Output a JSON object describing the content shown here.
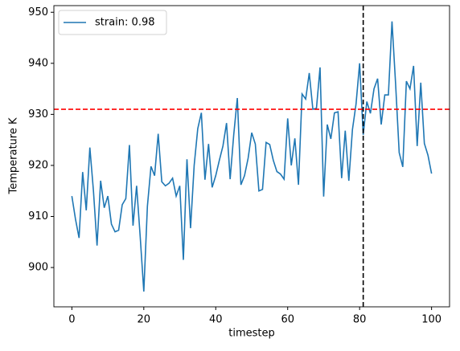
{
  "chart_data": {
    "type": "line",
    "xlabel": "timestep",
    "ylabel": "Temperature K",
    "x": [
      0,
      1,
      2,
      3,
      4,
      5,
      6,
      7,
      8,
      9,
      10,
      11,
      12,
      13,
      14,
      15,
      16,
      17,
      18,
      19,
      20,
      21,
      22,
      23,
      24,
      25,
      26,
      27,
      28,
      29,
      30,
      31,
      32,
      33,
      34,
      35,
      36,
      37,
      38,
      39,
      40,
      41,
      42,
      43,
      44,
      45,
      46,
      47,
      48,
      49,
      50,
      51,
      52,
      53,
      54,
      55,
      56,
      57,
      58,
      59,
      60,
      61,
      62,
      63,
      64,
      65,
      66,
      67,
      68,
      69,
      70,
      71,
      72,
      73,
      74,
      75,
      76,
      77,
      78,
      79,
      80,
      81,
      82,
      83,
      84,
      85,
      86,
      87,
      88,
      89,
      90,
      91,
      92,
      93,
      94,
      95,
      96,
      97,
      98,
      99,
      100
    ],
    "series": [
      {
        "name": "strain: 0.98",
        "color": "#1f77b4",
        "values": [
          914,
          909.5,
          905.8,
          918.7,
          911.2,
          923.5,
          915,
          904.3,
          917,
          911.7,
          914,
          908.5,
          907,
          907.3,
          912.3,
          913.5,
          924,
          908.2,
          916,
          906,
          895.3,
          912,
          919.8,
          918,
          926.2,
          916.8,
          916,
          916.5,
          917.5,
          914,
          916,
          901.5,
          921.2,
          907.7,
          920,
          927.2,
          930.3,
          917.2,
          924.2,
          915.7,
          918,
          921,
          923.8,
          928.3,
          917.3,
          926,
          933.2,
          916.2,
          918,
          921.4,
          926.4,
          924.2,
          915,
          915.3,
          924.5,
          924.1,
          921,
          918.8,
          918.3,
          917.3,
          929.2,
          920,
          925.3,
          916.2,
          934,
          933,
          938.1,
          931,
          931.2,
          939.2,
          913.9,
          928,
          925.2,
          930.3,
          930.5,
          917.5,
          926.8,
          917,
          927,
          932,
          940,
          926,
          932.5,
          930.2,
          935,
          937,
          928,
          933.8,
          933.8,
          948.2,
          936,
          922.5,
          919.7,
          936.5,
          935,
          939.5,
          923.8,
          936.2,
          924.3,
          922,
          918.4
        ]
      }
    ],
    "hlines": [
      {
        "value": 931,
        "color": "#ff0000"
      }
    ],
    "vlines": [
      {
        "value": 81,
        "color": "#000000"
      }
    ],
    "xlim": [
      -5,
      105
    ],
    "ylim": [
      892.3,
      951.3
    ],
    "xticks": [
      0,
      20,
      40,
      60,
      80,
      100
    ],
    "yticks": [
      900,
      910,
      920,
      930,
      940,
      950
    ],
    "legend": "upper left"
  }
}
